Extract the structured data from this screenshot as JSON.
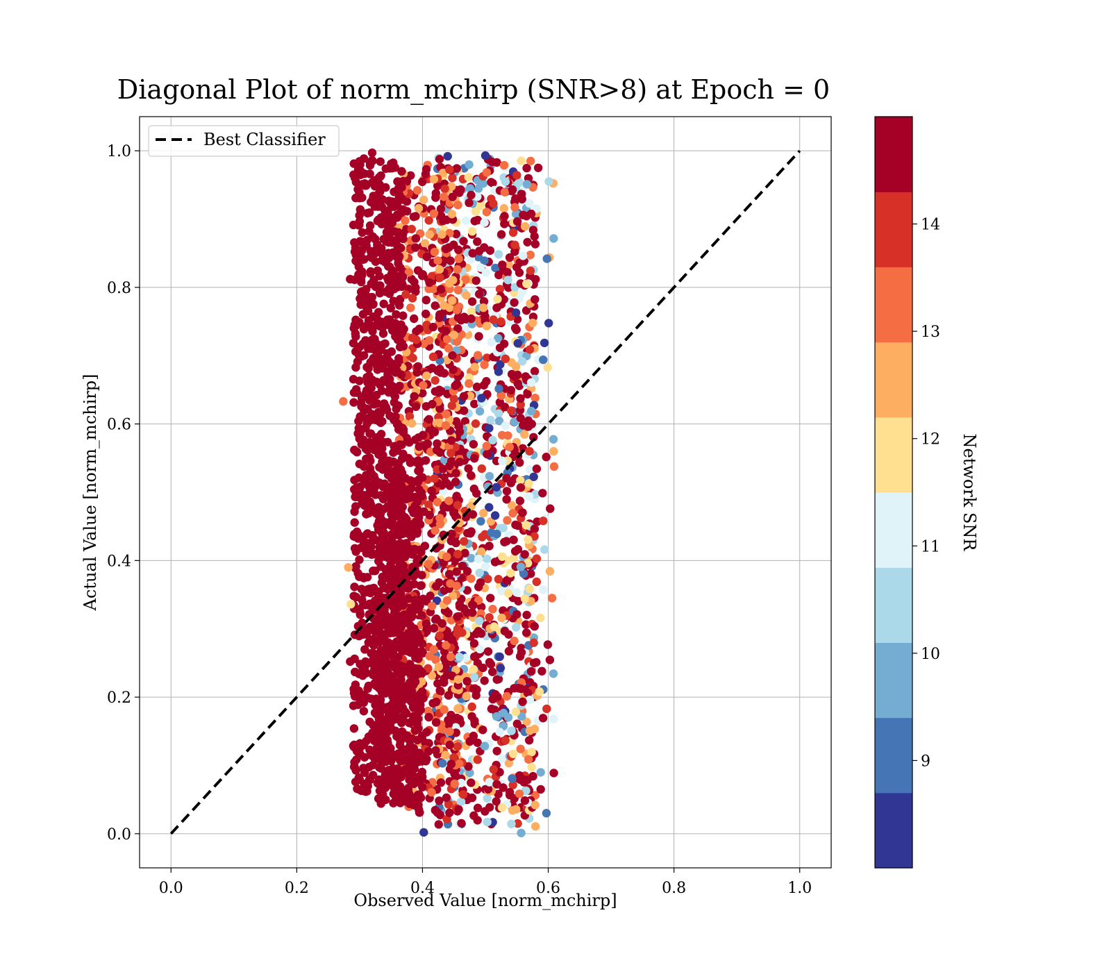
{
  "chart_data": {
    "type": "scatter",
    "title": "Diagonal Plot of norm_mchirp (SNR>8) at Epoch = 0",
    "xlabel": "Observed Value [norm_mchirp]",
    "ylabel": "Actual Value [norm_mchirp]",
    "xlim": [
      -0.05,
      1.05
    ],
    "ylim": [
      -0.05,
      1.05
    ],
    "x_ticks": [
      "0.0",
      "0.2",
      "0.4",
      "0.6",
      "0.8",
      "1.0"
    ],
    "y_ticks": [
      "0.0",
      "0.2",
      "0.4",
      "0.6",
      "0.8",
      "1.0"
    ],
    "grid": true,
    "legend": {
      "placement": "top-left",
      "entries": [
        "Best Classifier"
      ]
    },
    "reference_line": {
      "name": "Best Classifier",
      "x": [
        0.0,
        1.0
      ],
      "y": [
        0.0,
        1.0
      ],
      "style": "dashed",
      "color": "#000000"
    },
    "colorbar": {
      "label": "Network SNR",
      "range": [
        8,
        15
      ],
      "ticks": [
        "9",
        "10",
        "11",
        "12",
        "13",
        "14"
      ],
      "colors": [
        "#313695",
        "#4575b4",
        "#74add1",
        "#abd9e9",
        "#e0f3f8",
        "#fee090",
        "#fdae61",
        "#f46d43",
        "#d73027",
        "#a50026"
      ],
      "bins": [
        [
          8.0,
          8.7
        ],
        [
          8.7,
          9.4
        ],
        [
          9.4,
          10.1
        ],
        [
          10.1,
          10.8
        ],
        [
          10.8,
          11.5
        ],
        [
          11.5,
          12.2
        ],
        [
          12.2,
          12.9
        ],
        [
          12.9,
          13.6
        ],
        [
          13.6,
          14.3
        ],
        [
          14.3,
          15.0
        ]
      ]
    },
    "series": [
      {
        "marker": "circle",
        "point_cloud": [
          {
            "x_range": [
              0.29,
              0.37
            ],
            "y_range": [
              0.06,
              0.99
            ],
            "snr": 14.8,
            "count": 900
          },
          {
            "x_range": [
              0.33,
              0.4
            ],
            "y_range": [
              0.04,
              0.55
            ],
            "snr": 14.8,
            "count": 500
          },
          {
            "x_range": [
              0.36,
              0.46
            ],
            "y_range": [
              0.03,
              0.98
            ],
            "snr_range": [
              12.3,
              15.0
            ],
            "count": 650
          },
          {
            "x_range": [
              0.42,
              0.58
            ],
            "y_range": [
              0.01,
              0.99
            ],
            "snr_range": [
              8.0,
              15.0
            ],
            "count": 1100
          },
          {
            "x_range": [
              0.53,
              0.61
            ],
            "y_range": [
              0.03,
              0.97
            ],
            "snr_range": [
              8.0,
              15.0
            ],
            "count": 110
          }
        ],
        "outliers": [
          {
            "x": 0.274,
            "y": 0.633,
            "snr": 13.3
          },
          {
            "x": 0.601,
            "y": 0.955,
            "snr": 10.5
          },
          {
            "x": 0.584,
            "y": 0.975,
            "snr": 14.6
          },
          {
            "x": 0.572,
            "y": 0.985,
            "snr": 13.1
          },
          {
            "x": 0.603,
            "y": 0.476,
            "snr": 14.8
          },
          {
            "x": 0.606,
            "y": 0.345,
            "snr": 13.2
          },
          {
            "x": 0.592,
            "y": 0.694,
            "snr": 9.2
          },
          {
            "x": 0.598,
            "y": 0.842,
            "snr": 9.0
          },
          {
            "x": 0.588,
            "y": 0.065,
            "snr": 14.6
          },
          {
            "x": 0.402,
            "y": 0.002,
            "snr": 8.3
          },
          {
            "x": 0.557,
            "y": 0.001,
            "snr": 10.0
          },
          {
            "x": 0.285,
            "y": 0.252,
            "snr": 14.6
          },
          {
            "x": 0.282,
            "y": 0.39,
            "snr": 12.6
          },
          {
            "x": 0.285,
            "y": 0.812,
            "snr": 14.3
          },
          {
            "x": 0.32,
            "y": 0.997,
            "snr": 14.8
          },
          {
            "x": 0.44,
            "y": 0.992,
            "snr": 8.3
          },
          {
            "x": 0.5,
            "y": 0.993,
            "snr": 8.3
          },
          {
            "x": 0.57,
            "y": 0.923,
            "snr": 11.4
          },
          {
            "x": 0.594,
            "y": 0.416,
            "snr": 10.2
          },
          {
            "x": 0.586,
            "y": 0.208,
            "snr": 12.0
          },
          {
            "x": 0.592,
            "y": 0.458,
            "snr": 14.2
          },
          {
            "x": 0.286,
            "y": 0.336,
            "snr": 11.8
          }
        ]
      }
    ]
  }
}
